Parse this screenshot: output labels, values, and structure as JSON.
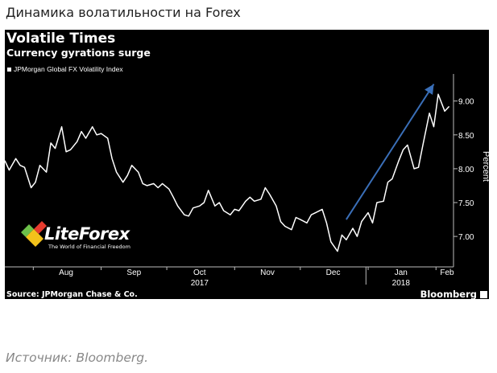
{
  "page": {
    "heading": "Динамика волатильности на Forex",
    "source_caption": "Источник: Bloomberg."
  },
  "chart": {
    "title": "Volatile Times",
    "subtitle": "Currency gyrations surge",
    "source": "Source: JPMorgan Chase & Co.",
    "brand": "Bloomberg",
    "watermark": {
      "brand": "LiteForex",
      "tagline": "The World of Financial Freedom"
    }
  },
  "colors": {
    "background": "#000000",
    "line": "#ffffff",
    "arrow": "#3a6fb8",
    "watermark_green": "#6cc04a",
    "watermark_yellow": "#f3c21b",
    "watermark_red": "#e63b2e"
  },
  "chart_data": {
    "type": "line",
    "title": "Volatile Times",
    "subtitle": "Currency gyrations surge",
    "ylabel": "Percent",
    "ylim": [
      6.55,
      9.4
    ],
    "y_ticks": [
      "7.00",
      "7.50",
      "8.00",
      "8.50",
      "9.00"
    ],
    "x_ticks": [
      "Aug",
      "Sep",
      "Oct",
      "Nov",
      "Dec",
      "Jan",
      "Feb"
    ],
    "x_ticks_dates": [
      "2017-08-01",
      "2017-09-01",
      "2017-10-01",
      "2017-11-01",
      "2017-12-01",
      "2018-01-01",
      "2018-02-01"
    ],
    "year_labels": [
      "2017",
      "2018"
    ],
    "year_labels_dates": [
      "2017-10-01",
      "2018-01-01"
    ],
    "year_separator_date": "2017-12-31",
    "grid": false,
    "legend_position": "top-left",
    "series": [
      {
        "name": "JPMorgan Global FX Volatility Index",
        "x": [
          "2017-07-19",
          "2017-07-21",
          "2017-07-24",
          "2017-07-26",
          "2017-07-28",
          "2017-07-31",
          "2017-08-02",
          "2017-08-04",
          "2017-08-07",
          "2017-08-09",
          "2017-08-11",
          "2017-08-14",
          "2017-08-16",
          "2017-08-18",
          "2017-08-21",
          "2017-08-23",
          "2017-08-25",
          "2017-08-28",
          "2017-08-30",
          "2017-09-01",
          "2017-09-04",
          "2017-09-06",
          "2017-09-08",
          "2017-09-11",
          "2017-09-13",
          "2017-09-15",
          "2017-09-18",
          "2017-09-20",
          "2017-09-22",
          "2017-09-25",
          "2017-09-27",
          "2017-09-29",
          "2017-10-02",
          "2017-10-04",
          "2017-10-06",
          "2017-10-09",
          "2017-10-11",
          "2017-10-13",
          "2017-10-16",
          "2017-10-18",
          "2017-10-20",
          "2017-10-23",
          "2017-10-25",
          "2017-10-27",
          "2017-10-30",
          "2017-11-01",
          "2017-11-03",
          "2017-11-06",
          "2017-11-08",
          "2017-11-10",
          "2017-11-13",
          "2017-11-15",
          "2017-11-17",
          "2017-11-20",
          "2017-11-22",
          "2017-11-24",
          "2017-11-27",
          "2017-11-29",
          "2017-12-01",
          "2017-12-04",
          "2017-12-06",
          "2017-12-08",
          "2017-12-11",
          "2017-12-13",
          "2017-12-15",
          "2017-12-18",
          "2017-12-20",
          "2017-12-22",
          "2017-12-25",
          "2017-12-27",
          "2017-12-29",
          "2018-01-01",
          "2018-01-03",
          "2018-01-05",
          "2018-01-08",
          "2018-01-10",
          "2018-01-12",
          "2018-01-15",
          "2018-01-17",
          "2018-01-19",
          "2018-01-22",
          "2018-01-24",
          "2018-01-26",
          "2018-01-29",
          "2018-01-31",
          "2018-02-02",
          "2018-02-05",
          "2018-02-07"
        ],
        "values": [
          8.12,
          7.98,
          8.15,
          8.05,
          8.02,
          7.72,
          7.8,
          8.05,
          7.95,
          8.38,
          8.3,
          8.62,
          8.25,
          8.28,
          8.4,
          8.55,
          8.45,
          8.62,
          8.5,
          8.52,
          8.45,
          8.15,
          7.95,
          7.8,
          7.9,
          8.05,
          7.95,
          7.78,
          7.75,
          7.78,
          7.72,
          7.78,
          7.7,
          7.58,
          7.45,
          7.32,
          7.3,
          7.42,
          7.45,
          7.5,
          7.68,
          7.45,
          7.5,
          7.38,
          7.32,
          7.4,
          7.38,
          7.52,
          7.58,
          7.52,
          7.55,
          7.72,
          7.62,
          7.45,
          7.22,
          7.15,
          7.1,
          7.28,
          7.25,
          7.2,
          7.32,
          7.35,
          7.4,
          7.2,
          6.92,
          6.78,
          7.02,
          6.95,
          7.12,
          7.0,
          7.22,
          7.35,
          7.2,
          7.5,
          7.52,
          7.8,
          7.85,
          8.12,
          8.28,
          8.35,
          8.0,
          8.02,
          8.35,
          8.82,
          8.62,
          9.1,
          8.85,
          8.92
        ]
      }
    ],
    "annotations": [
      {
        "type": "arrow",
        "from": {
          "x": "2017-12-22",
          "y": 7.25
        },
        "to": {
          "x": "2018-01-31",
          "y": 9.25
        }
      }
    ]
  }
}
